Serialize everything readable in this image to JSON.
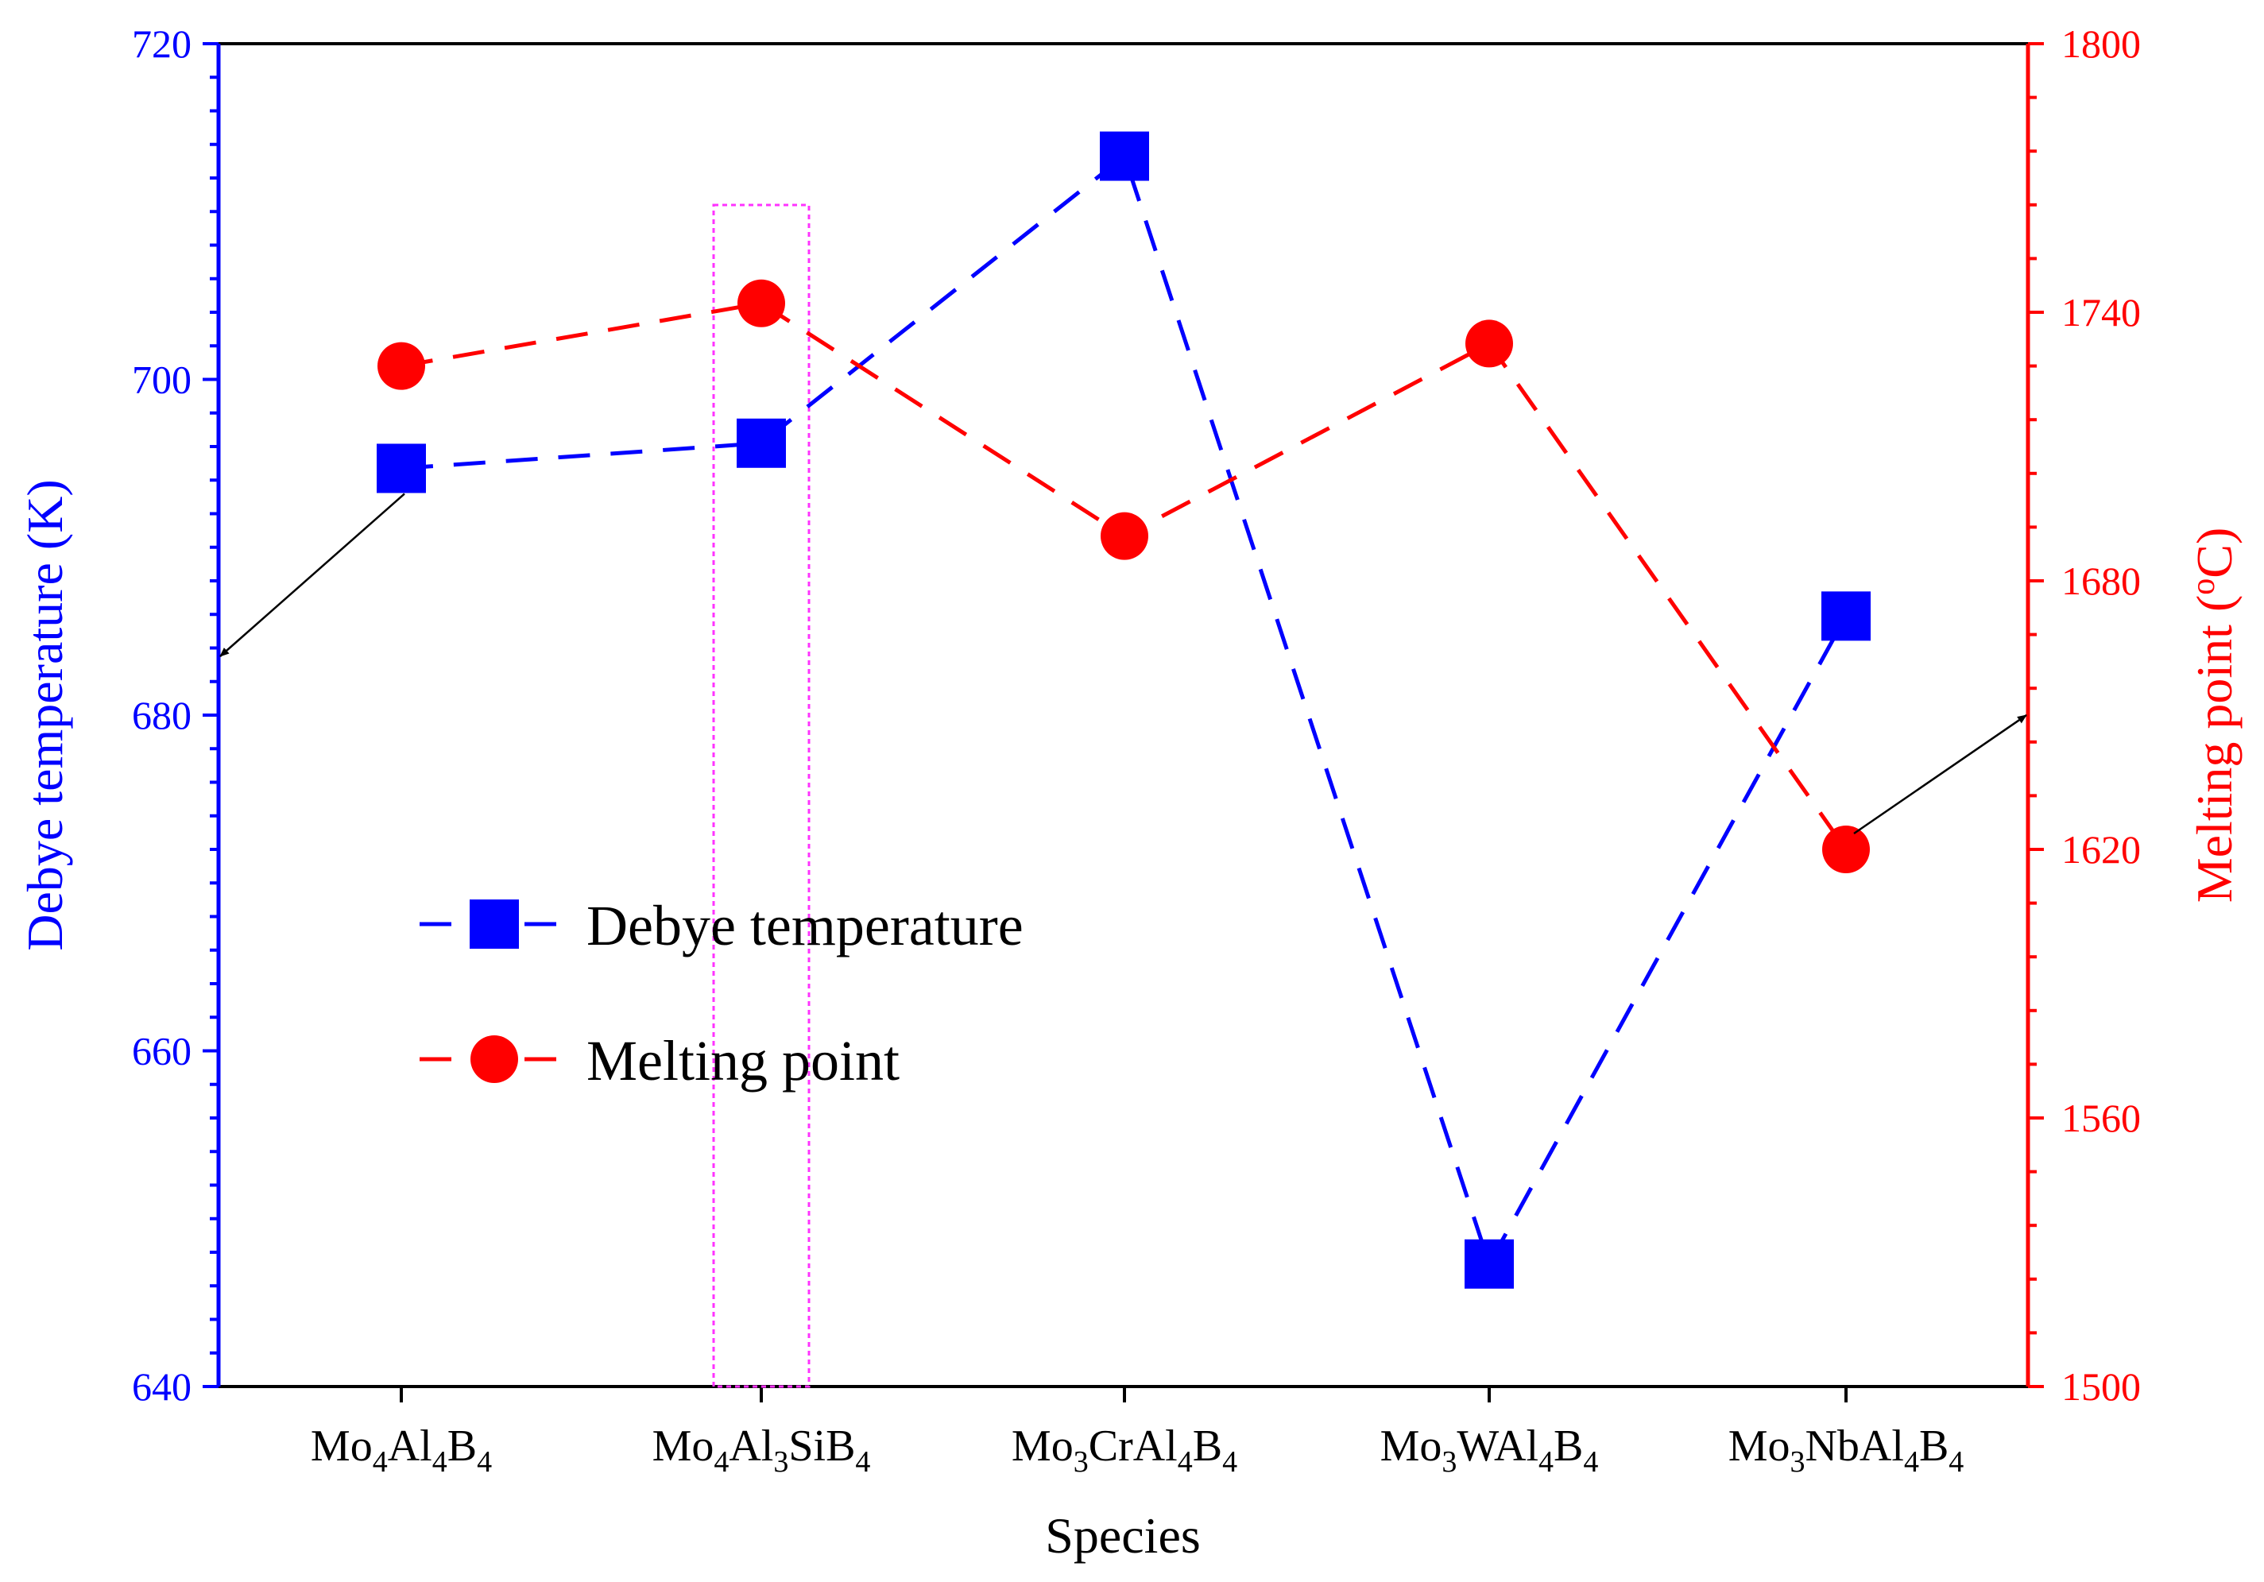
{
  "chart_data": {
    "type": "line",
    "categories": [
      {
        "label": "Mo4Al4B4",
        "parts": [
          [
            "Mo",
            ""
          ],
          [
            "4",
            "sub"
          ],
          [
            "Al",
            ""
          ],
          [
            "4",
            "sub"
          ],
          [
            "B",
            ""
          ],
          [
            "4",
            "sub"
          ]
        ]
      },
      {
        "label": "Mo4Al3SiB4",
        "parts": [
          [
            "Mo",
            ""
          ],
          [
            "4",
            "sub"
          ],
          [
            "Al",
            ""
          ],
          [
            "3",
            "sub"
          ],
          [
            "SiB",
            ""
          ],
          [
            "4",
            "sub"
          ]
        ]
      },
      {
        "label": "Mo3CrAl4B4",
        "parts": [
          [
            "Mo",
            ""
          ],
          [
            "3",
            "sub"
          ],
          [
            "CrAl",
            ""
          ],
          [
            "4",
            "sub"
          ],
          [
            "B",
            ""
          ],
          [
            "4",
            "sub"
          ]
        ]
      },
      {
        "label": "Mo3WAl4B4",
        "parts": [
          [
            "Mo",
            ""
          ],
          [
            "3",
            "sub"
          ],
          [
            "WAl",
            ""
          ],
          [
            "4",
            "sub"
          ],
          [
            "B",
            ""
          ],
          [
            "4",
            "sub"
          ]
        ]
      },
      {
        "label": "Mo3NbAl4B4",
        "parts": [
          [
            "Mo",
            ""
          ],
          [
            "3",
            "sub"
          ],
          [
            "NbAl",
            ""
          ],
          [
            "4",
            "sub"
          ],
          [
            "B",
            ""
          ],
          [
            "4",
            "sub"
          ]
        ]
      }
    ],
    "xlabel": "Species",
    "series": [
      {
        "name": "Debye temperature",
        "axis": "left",
        "color": "#0000ff",
        "marker": "square",
        "values": [
          694.7,
          696.2,
          713.3,
          647.3,
          685.9
        ]
      },
      {
        "name": "Melting point",
        "axis": "right",
        "color": "#ff0000",
        "marker": "circle",
        "values": [
          1728,
          1742,
          1690,
          1733,
          1620
        ]
      }
    ],
    "y_left": {
      "label": "Debye temperature (K)",
      "min": 640,
      "max": 720,
      "ticks": [
        640,
        660,
        680,
        700,
        720
      ],
      "color": "#0000ff"
    },
    "y_right": {
      "label_main": "Melting point (",
      "label_sup": "o",
      "label_end": "C)",
      "min": 1500,
      "max": 1800,
      "ticks": [
        1500,
        1560,
        1620,
        1680,
        1740,
        1800
      ],
      "color": "#ff0000"
    },
    "legend_placement": "center-left",
    "highlight_category": "Mo4Al3SiB4",
    "grid": false
  }
}
